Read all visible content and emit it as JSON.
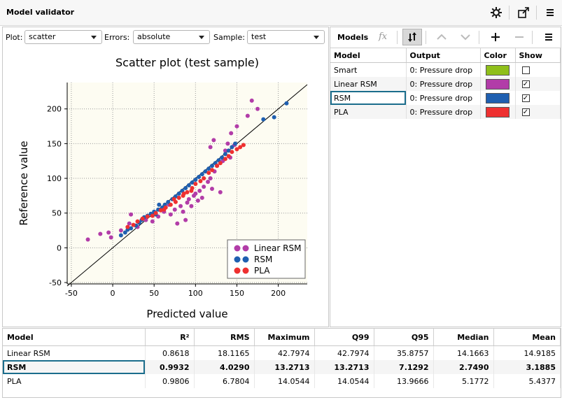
{
  "window": {
    "title": "Model validator"
  },
  "controls": {
    "plot_label": "Plot:",
    "plot_value": "scatter",
    "errors_label": "Errors:",
    "errors_value": "absolute",
    "sample_label": "Sample:",
    "sample_value": "test"
  },
  "models_toolbar": {
    "label": "Models",
    "fx": "fx"
  },
  "models_table": {
    "headers": [
      "Model",
      "Output",
      "Color",
      "Show"
    ],
    "rows": [
      {
        "model": "Smart",
        "output": "0: Pressure drop",
        "color": "#8fbf1a",
        "show": false
      },
      {
        "model": "Linear RSM",
        "output": "0: Pressure drop",
        "color": "#b23ca8",
        "show": true
      },
      {
        "model": "RSM",
        "output": "0: Pressure drop",
        "color": "#1f5fb0",
        "show": true
      },
      {
        "model": "PLA",
        "output": "0: Pressure drop",
        "color": "#ee3030",
        "show": true
      }
    ],
    "selected": "RSM"
  },
  "chart_data": {
    "type": "scatter",
    "title": "Scatter plot (test sample)",
    "xlabel": "Predicted value",
    "ylabel": "Reference value",
    "xlim": [
      -55,
      235
    ],
    "ylim": [
      -52,
      238
    ],
    "xticks": [
      -50,
      0,
      50,
      100,
      150,
      200
    ],
    "yticks": [
      -50,
      0,
      50,
      100,
      150,
      200
    ],
    "grid": true,
    "legend": "bottom-right",
    "reference_line": [
      [
        -55,
        -55
      ],
      [
        235,
        235
      ]
    ],
    "series": [
      {
        "name": "Linear RSM",
        "color": "#b23ca8",
        "points": [
          [
            -30,
            12
          ],
          [
            -15,
            20
          ],
          [
            -5,
            22
          ],
          [
            -2,
            15
          ],
          [
            10,
            25
          ],
          [
            20,
            35
          ],
          [
            22,
            48
          ],
          [
            30,
            30
          ],
          [
            40,
            40
          ],
          [
            48,
            38
          ],
          [
            55,
            45
          ],
          [
            62,
            52
          ],
          [
            70,
            48
          ],
          [
            75,
            55
          ],
          [
            82,
            60
          ],
          [
            85,
            52
          ],
          [
            90,
            65
          ],
          [
            92,
            70
          ],
          [
            95,
            60
          ],
          [
            98,
            75
          ],
          [
            100,
            78
          ],
          [
            103,
            68
          ],
          [
            105,
            82
          ],
          [
            108,
            72
          ],
          [
            110,
            88
          ],
          [
            115,
            95
          ],
          [
            118,
            100
          ],
          [
            120,
            85
          ],
          [
            123,
            110
          ],
          [
            126,
            118
          ],
          [
            130,
            80
          ],
          [
            133,
            125
          ],
          [
            136,
            140
          ],
          [
            139,
            150
          ],
          [
            143,
            165
          ],
          [
            150,
            175
          ],
          [
            163,
            190
          ],
          [
            168,
            212
          ],
          [
            175,
            200
          ],
          [
            118,
            145
          ],
          [
            122,
            155
          ],
          [
            142,
            130
          ],
          [
            147,
            148
          ],
          [
            88,
            40
          ],
          [
            78,
            35
          ],
          [
            68,
            62
          ]
        ]
      },
      {
        "name": "RSM",
        "color": "#1f5fb0",
        "points": [
          [
            10,
            18
          ],
          [
            15,
            22
          ],
          [
            18,
            26
          ],
          [
            22,
            28
          ],
          [
            28,
            32
          ],
          [
            32,
            36
          ],
          [
            35,
            40
          ],
          [
            38,
            44
          ],
          [
            42,
            46
          ],
          [
            46,
            49
          ],
          [
            50,
            52
          ],
          [
            55,
            55
          ],
          [
            60,
            58
          ],
          [
            63,
            62
          ],
          [
            67,
            66
          ],
          [
            72,
            70
          ],
          [
            76,
            74
          ],
          [
            80,
            78
          ],
          [
            84,
            82
          ],
          [
            88,
            86
          ],
          [
            92,
            90
          ],
          [
            96,
            94
          ],
          [
            100,
            98
          ],
          [
            104,
            102
          ],
          [
            108,
            106
          ],
          [
            112,
            110
          ],
          [
            116,
            114
          ],
          [
            120,
            118
          ],
          [
            124,
            122
          ],
          [
            128,
            126
          ],
          [
            132,
            130
          ],
          [
            136,
            135
          ],
          [
            140,
            140
          ],
          [
            144,
            145
          ],
          [
            148,
            150
          ],
          [
            182,
            185
          ],
          [
            195,
            188
          ],
          [
            210,
            208
          ],
          [
            52,
            48
          ],
          [
            56,
            62
          ]
        ]
      },
      {
        "name": "PLA",
        "color": "#ee3030",
        "points": [
          [
            18,
            30
          ],
          [
            25,
            33
          ],
          [
            30,
            38
          ],
          [
            36,
            42
          ],
          [
            42,
            45
          ],
          [
            48,
            46
          ],
          [
            52,
            50
          ],
          [
            58,
            54
          ],
          [
            64,
            58
          ],
          [
            70,
            62
          ],
          [
            76,
            66
          ],
          [
            80,
            72
          ],
          [
            86,
            78
          ],
          [
            90,
            80
          ],
          [
            96,
            86
          ],
          [
            100,
            92
          ],
          [
            106,
            96
          ],
          [
            110,
            100
          ],
          [
            116,
            108
          ],
          [
            120,
            112
          ],
          [
            126,
            118
          ],
          [
            130,
            122
          ],
          [
            136,
            128
          ],
          [
            140,
            132
          ],
          [
            144,
            138
          ],
          [
            150,
            142
          ],
          [
            154,
            145
          ],
          [
            158,
            148
          ],
          [
            62,
            55
          ],
          [
            74,
            70
          ],
          [
            85,
            75
          ],
          [
            95,
            82
          ]
        ]
      }
    ]
  },
  "stats_table": {
    "headers": [
      "Model",
      "R²",
      "RMS",
      "Maximum",
      "Q99",
      "Q95",
      "Median",
      "Mean"
    ],
    "rows": [
      [
        "Linear RSM",
        "0.8618",
        "18.1165",
        "42.7974",
        "42.7974",
        "35.8757",
        "14.1663",
        "14.9185"
      ],
      [
        "RSM",
        "0.9932",
        "4.0290",
        "13.2713",
        "13.2713",
        "7.1292",
        "2.7490",
        "3.1885"
      ],
      [
        "PLA",
        "0.9806",
        "6.7804",
        "14.0544",
        "14.0544",
        "13.9666",
        "5.1772",
        "5.4377"
      ]
    ],
    "selected": "RSM"
  }
}
